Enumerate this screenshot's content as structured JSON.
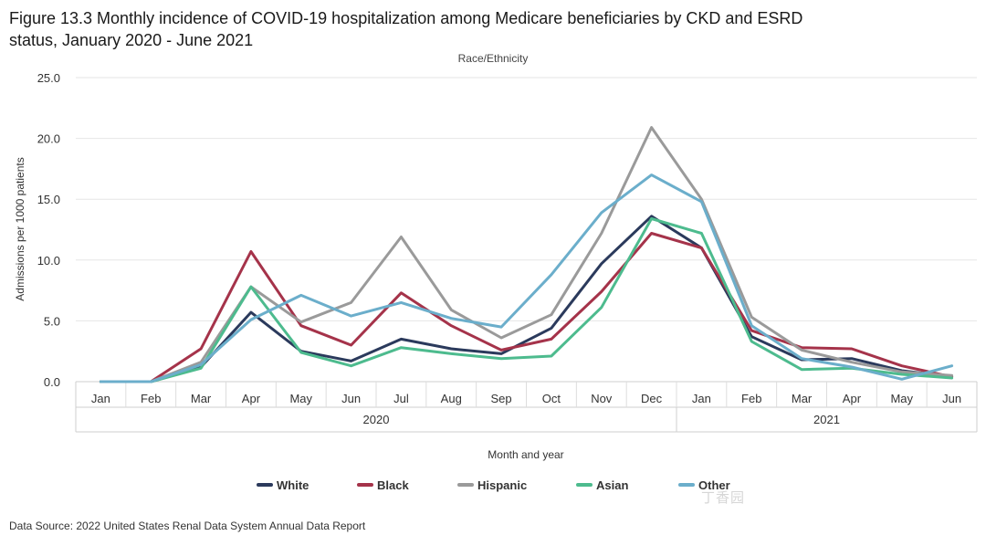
{
  "title_line1": "Figure 13.3 Monthly incidence of COVID-19 hospitalization among Medicare beneficiaries by CKD and ESRD",
  "title_line2": "status, January 2020 - June 2021",
  "source": "Data Source: 2022 United States Renal Data System Annual Data Report",
  "watermark": "丁香园",
  "chart_data": {
    "type": "line",
    "subtitle": "Race/Ethnicity",
    "xlabel": "Month and year",
    "ylabel": "Admissions per 1000 patients",
    "ylim": [
      0,
      25
    ],
    "yticks": [
      "0.0",
      "5.0",
      "10.0",
      "15.0",
      "20.0",
      "25.0"
    ],
    "ytick_values": [
      0,
      5,
      10,
      15,
      20,
      25
    ],
    "categories": [
      "Jan",
      "Feb",
      "Mar",
      "Apr",
      "May",
      "Jun",
      "Jul",
      "Aug",
      "Sep",
      "Oct",
      "Nov",
      "Dec",
      "Jan",
      "Feb",
      "Mar",
      "Apr",
      "May",
      "Jun"
    ],
    "year_groups": [
      {
        "label": "2020",
        "start": 0,
        "end": 11
      },
      {
        "label": "2021",
        "start": 12,
        "end": 17
      }
    ],
    "legend_position": "bottom",
    "series": [
      {
        "name": "White",
        "color": "#2b3a5c",
        "values": [
          0.0,
          0.0,
          1.2,
          5.7,
          2.5,
          1.7,
          3.5,
          2.7,
          2.3,
          4.4,
          9.7,
          13.6,
          11.0,
          3.7,
          1.8,
          1.9,
          0.9,
          0.4
        ]
      },
      {
        "name": "Black",
        "color": "#a5334a",
        "values": [
          0.0,
          0.0,
          2.7,
          10.7,
          4.6,
          3.0,
          7.3,
          4.6,
          2.6,
          3.5,
          7.4,
          12.2,
          11.0,
          4.2,
          2.8,
          2.7,
          1.3,
          0.4
        ]
      },
      {
        "name": "Hispanic",
        "color": "#9a9a9a",
        "values": [
          0.0,
          0.0,
          1.6,
          7.8,
          4.9,
          6.5,
          11.9,
          5.9,
          3.6,
          5.5,
          12.2,
          20.9,
          15.0,
          5.3,
          2.6,
          1.6,
          0.8,
          0.5
        ]
      },
      {
        "name": "Asian",
        "color": "#4dbb8e",
        "values": [
          0.0,
          0.0,
          1.1,
          7.8,
          2.4,
          1.3,
          2.8,
          2.3,
          1.9,
          2.1,
          6.1,
          13.4,
          12.2,
          3.3,
          1.0,
          1.1,
          0.6,
          0.3
        ]
      },
      {
        "name": "Other",
        "color": "#6baecb",
        "values": [
          0.0,
          0.0,
          1.4,
          5.1,
          7.1,
          5.4,
          6.5,
          5.2,
          4.5,
          8.8,
          13.9,
          17.0,
          14.8,
          4.6,
          1.9,
          1.2,
          0.2,
          1.3
        ]
      }
    ]
  }
}
